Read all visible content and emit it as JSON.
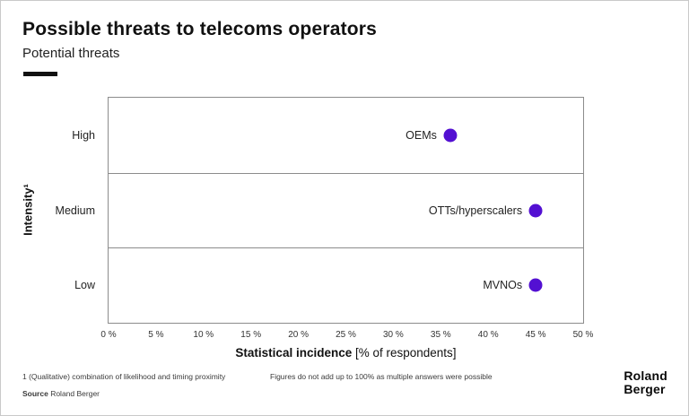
{
  "header": {
    "title": "Possible threats to telecoms operators",
    "subtitle": "Potential threats"
  },
  "chart_data": {
    "type": "scatter",
    "title": "Possible threats to telecoms operators",
    "subtitle": "Potential threats",
    "x_axis": {
      "label_bold": "Statistical incidence",
      "label_unit": " [% of respondents]",
      "min": 0,
      "max": 50,
      "tick_step": 5,
      "tick_labels": [
        "0 %",
        "5 %",
        "10 %",
        "15 %",
        "20 %",
        "25 %",
        "30 %",
        "35 %",
        "40 %",
        "45 %",
        "50 %"
      ]
    },
    "y_axis": {
      "label": "Intensity¹",
      "categories": [
        "High",
        "Medium",
        "Low"
      ]
    },
    "points": [
      {
        "label": "OEMs",
        "category": "High",
        "x": 36
      },
      {
        "label": "OTTs/hyperscalers",
        "category": "Medium",
        "x": 45
      },
      {
        "label": "MVNOs",
        "category": "Low",
        "x": 45
      }
    ],
    "point_color": "#5310d2",
    "grid": "horizontal-band-dividers",
    "legend": "none"
  },
  "footnotes": {
    "note1": "1 (Qualitative) combination of likelihood and timing proximity",
    "note2": "Figures do not add up to 100% as multiple answers were possible",
    "source_label": "Source",
    "source_text": " Roland Berger"
  },
  "logo": {
    "line1": "Roland",
    "line2": "Berger"
  }
}
